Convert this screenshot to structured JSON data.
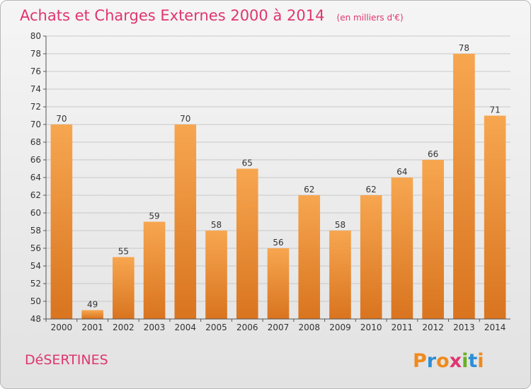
{
  "chart_data": {
    "type": "bar",
    "title": "Achats et Charges Externes 2000 à 2014",
    "subtitle": "(en milliers d'€)",
    "categories": [
      "2000",
      "2001",
      "2002",
      "2003",
      "2004",
      "2005",
      "2006",
      "2007",
      "2008",
      "2009",
      "2010",
      "2011",
      "2012",
      "2013",
      "2014"
    ],
    "values": [
      70,
      49,
      55,
      59,
      70,
      58,
      65,
      56,
      62,
      58,
      62,
      64,
      66,
      78,
      71
    ],
    "ylim": [
      48,
      80
    ],
    "yticks": [
      48,
      50,
      52,
      54,
      56,
      58,
      60,
      62,
      64,
      66,
      68,
      70,
      72,
      74,
      76,
      78,
      80
    ],
    "grid": true,
    "bar_color_top": "#f7a650",
    "bar_color_bottom": "#d9741f"
  },
  "footer": {
    "commune": "DéSERTINES",
    "logo_letters": [
      "P",
      "r",
      "o",
      "x",
      "i",
      "t",
      "i"
    ],
    "logo_colors": [
      "#f08a1c",
      "#2a8fd6",
      "#f08a1c",
      "#e0356f",
      "#6ab023",
      "#2a8fd6",
      "#f08a1c"
    ]
  }
}
